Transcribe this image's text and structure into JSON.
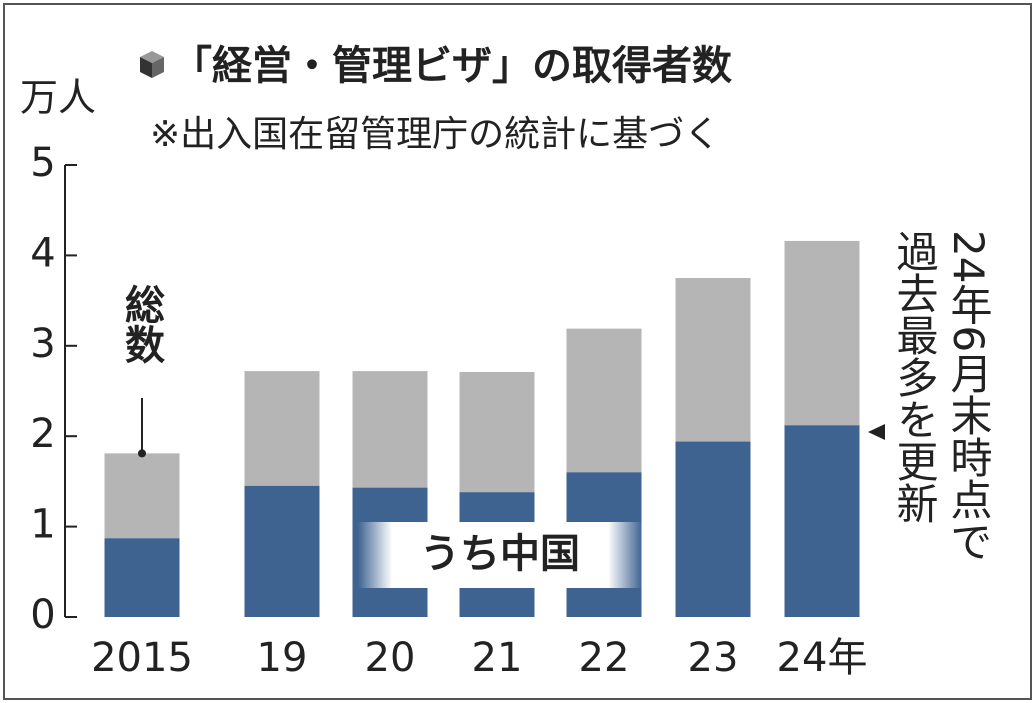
{
  "chart_data": {
    "type": "bar",
    "overlay": true,
    "title": "「経営・管理ビザ」の取得者数",
    "subtitle": "※出入国在留管理庁の統計に基づく",
    "y_label": "万人",
    "categories": [
      "2015",
      "19",
      "20",
      "21",
      "22",
      "23",
      "24年"
    ],
    "series": [
      {
        "name": "総数",
        "color": "#b5b5b5",
        "values": [
          1.81,
          2.72,
          2.72,
          2.71,
          3.19,
          3.75,
          4.16
        ]
      },
      {
        "name": "うち中国",
        "color": "#3f6391",
        "values": [
          0.87,
          1.45,
          1.43,
          1.38,
          1.6,
          1.94,
          2.12
        ]
      }
    ],
    "ylim": [
      0,
      5
    ],
    "yticks": [
      0,
      1,
      2,
      3,
      4,
      5
    ],
    "grid": false,
    "annotations": [
      "24年6月末時点で",
      "過去最多を更新"
    ]
  }
}
